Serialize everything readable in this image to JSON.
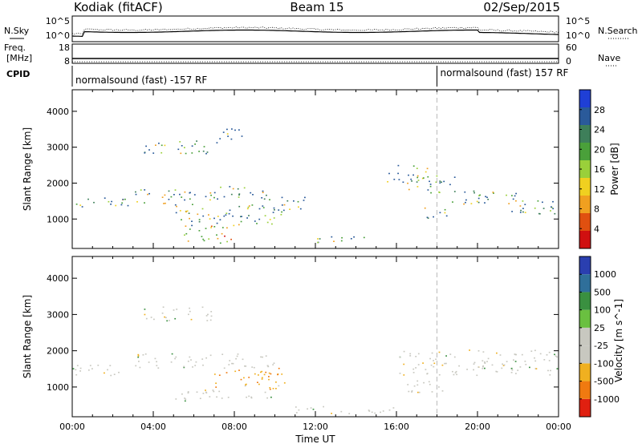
{
  "header": {
    "station": "Kodiak (fitACF)",
    "beam": "Beam 15",
    "date": "02/Sep/2015"
  },
  "strips": {
    "nsky_label": "N.Sky",
    "nsearch_label": "N.Search",
    "freq_label_line1": "Freq.",
    "freq_label_line2": "[MHz]",
    "nave_label": "Nave",
    "cpid_label": "CPID",
    "noise_ticks_left": [
      "10^5",
      "10^0"
    ],
    "noise_ticks_right": [
      "10^5",
      "10^0"
    ],
    "freq_ticks": [
      "18",
      "8"
    ],
    "nave_ticks": [
      "60",
      "0"
    ],
    "cpid_segments": [
      {
        "text": "normalsound (fast) -157 RF",
        "start_hour": 0
      },
      {
        "text": "normalsound (fast) 157 RF",
        "start_hour": 18
      }
    ]
  },
  "chart_data": [
    {
      "type": "heatmap",
      "name": "power",
      "ylabel": "Slant Range [km]",
      "ylim": [
        180,
        4600
      ],
      "yticks": [
        "4000",
        "3000",
        "2000",
        "1000"
      ],
      "ytick_values": [
        4000,
        3000,
        2000,
        1000
      ],
      "xlim_hours": [
        0,
        24
      ],
      "colorbar": {
        "label": "Power [dB]",
        "ticks": [
          "28",
          "24",
          "20",
          "16",
          "12",
          "8",
          "4"
        ],
        "tick_values": [
          28,
          24,
          20,
          16,
          12,
          8,
          4
        ],
        "range": [
          0,
          32
        ],
        "colors": [
          "#1f3fd6",
          "#2a5a9a",
          "#3e7f5a",
          "#4aa03a",
          "#9ad03a",
          "#f0d020",
          "#f0a020",
          "#e05010",
          "#d01010"
        ]
      },
      "scatter_regions": [
        {
          "t": [
            0.0,
            3.0
          ],
          "r": [
            1300,
            1600
          ]
        },
        {
          "t": [
            3.0,
            6.5
          ],
          "r": [
            1400,
            1800
          ]
        },
        {
          "t": [
            6.5,
            10.0
          ],
          "r": [
            1500,
            1900
          ]
        },
        {
          "t": [
            10.0,
            11.5
          ],
          "r": [
            1200,
            1600
          ]
        },
        {
          "t": [
            5.0,
            10.5
          ],
          "r": [
            800,
            1400
          ]
        },
        {
          "t": [
            5.5,
            8.0
          ],
          "r": [
            300,
            800
          ]
        },
        {
          "t": [
            3.5,
            7.0
          ],
          "r": [
            2800,
            3200
          ]
        },
        {
          "t": [
            7.0,
            8.5
          ],
          "r": [
            3100,
            3500
          ]
        },
        {
          "t": [
            11.5,
            14.5
          ],
          "r": [
            300,
            500
          ]
        },
        {
          "t": [
            15.5,
            17.5
          ],
          "r": [
            2000,
            2500
          ]
        },
        {
          "t": [
            16.5,
            19.0
          ],
          "r": [
            1700,
            2200
          ]
        },
        {
          "t": [
            18.5,
            22.0
          ],
          "r": [
            1400,
            1800
          ]
        },
        {
          "t": [
            21.0,
            24.0
          ],
          "r": [
            1100,
            1500
          ]
        },
        {
          "t": [
            17.0,
            18.5
          ],
          "r": [
            1000,
            1300
          ]
        }
      ]
    },
    {
      "type": "heatmap",
      "name": "velocity",
      "ylabel": "Slant Range [km]",
      "ylim": [
        180,
        4600
      ],
      "yticks": [
        "4000",
        "3000",
        "2000",
        "1000"
      ],
      "ytick_values": [
        4000,
        3000,
        2000,
        1000
      ],
      "xlim_hours": [
        0,
        24
      ],
      "xticks": [
        "00:00",
        "04:00",
        "08:00",
        "12:00",
        "16:00",
        "20:00",
        "00:00"
      ],
      "xtick_hours": [
        0,
        4,
        8,
        12,
        16,
        20,
        24
      ],
      "xlabel": "Time UT",
      "colorbar": {
        "label": "Velocity [m s^-1]",
        "ticks": [
          "1000",
          "500",
          "100",
          "25",
          "-25",
          "-100",
          "-500",
          "-1000"
        ],
        "colors": [
          "#2a3fb0",
          "#2f6f9a",
          "#3a9040",
          "#6ac040",
          "#c8c8c0",
          "#c8c8c0",
          "#f0b020",
          "#f07a10",
          "#e02010"
        ]
      },
      "scatter_regions": [
        {
          "t": [
            0.0,
            3.0
          ],
          "r": [
            1300,
            1600
          ]
        },
        {
          "t": [
            3.0,
            10.0
          ],
          "r": [
            1500,
            1900
          ]
        },
        {
          "t": [
            7.0,
            10.5
          ],
          "r": [
            900,
            1500
          ]
        },
        {
          "t": [
            5.0,
            10.0
          ],
          "r": [
            600,
            900
          ]
        },
        {
          "t": [
            3.5,
            7.0
          ],
          "r": [
            2800,
            3200
          ]
        },
        {
          "t": [
            11.0,
            16.0
          ],
          "r": [
            250,
            450
          ]
        },
        {
          "t": [
            16.0,
            24.0
          ],
          "r": [
            1300,
            2000
          ]
        },
        {
          "t": [
            16.5,
            18.5
          ],
          "r": [
            800,
            1200
          ]
        }
      ]
    }
  ]
}
